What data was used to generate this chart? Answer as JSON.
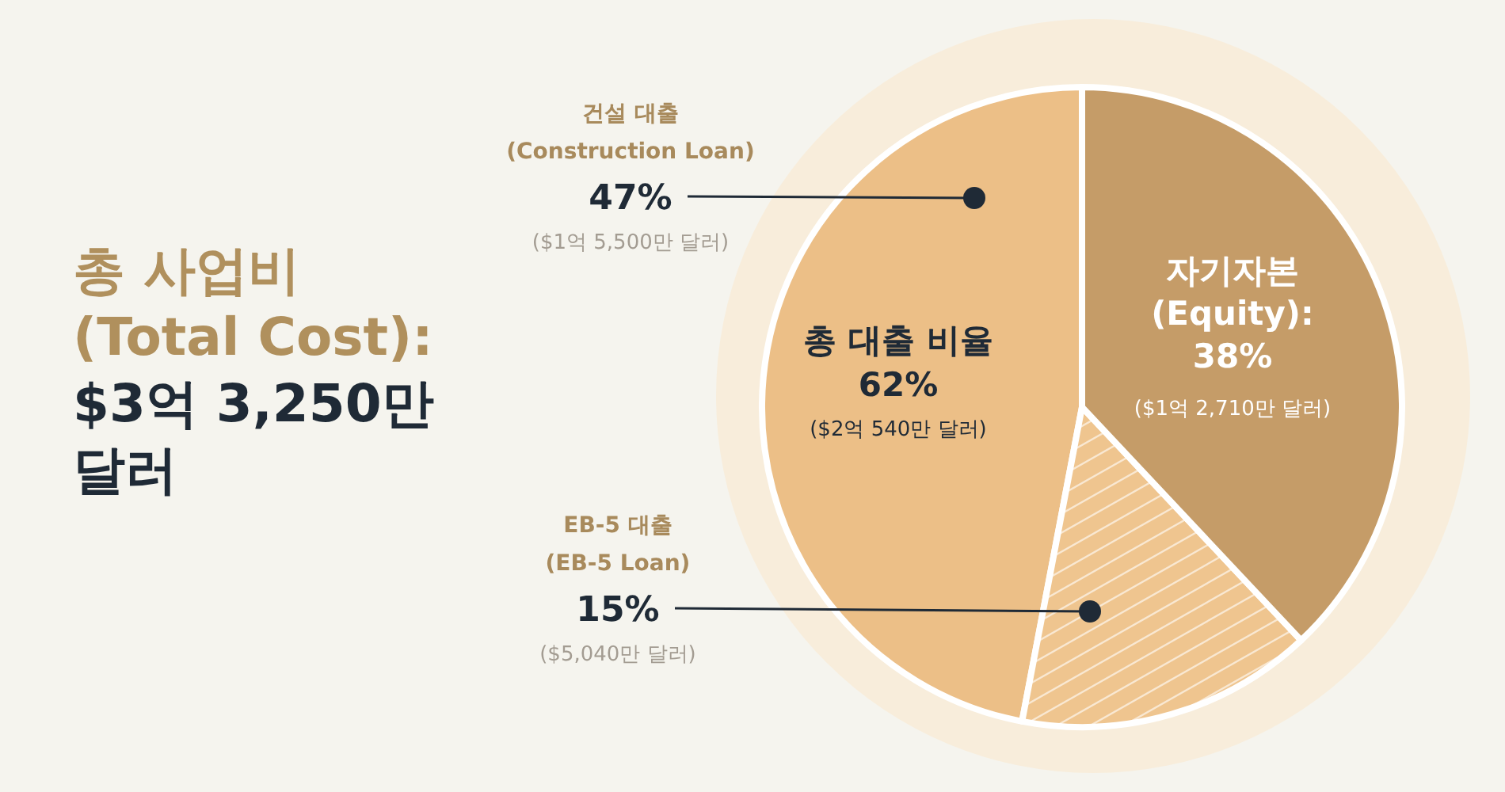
{
  "chart_data": {
    "type": "pie",
    "title": "총 사업비 (Total Cost):",
    "subtitle": "$3억 3,250만 달러",
    "categories": [
      "건설 대출 (Construction Loan)",
      "EB-5 대출 (EB-5 Loan)",
      "자기자본 (Equity)"
    ],
    "values": [
      47,
      15,
      38
    ],
    "colors": [
      "#ecbf87",
      "#efc58f",
      "#c59c68"
    ],
    "value_labels": [
      "47%",
      "15%",
      "38%"
    ],
    "annotations": [
      "($1억 5,500만 달러)",
      "($5,040만 달러)",
      "($1억 2,710만 달러)",
      "총 대출 비율",
      "62%",
      "($2억 540만 달러)",
      ":"
    ]
  }
}
